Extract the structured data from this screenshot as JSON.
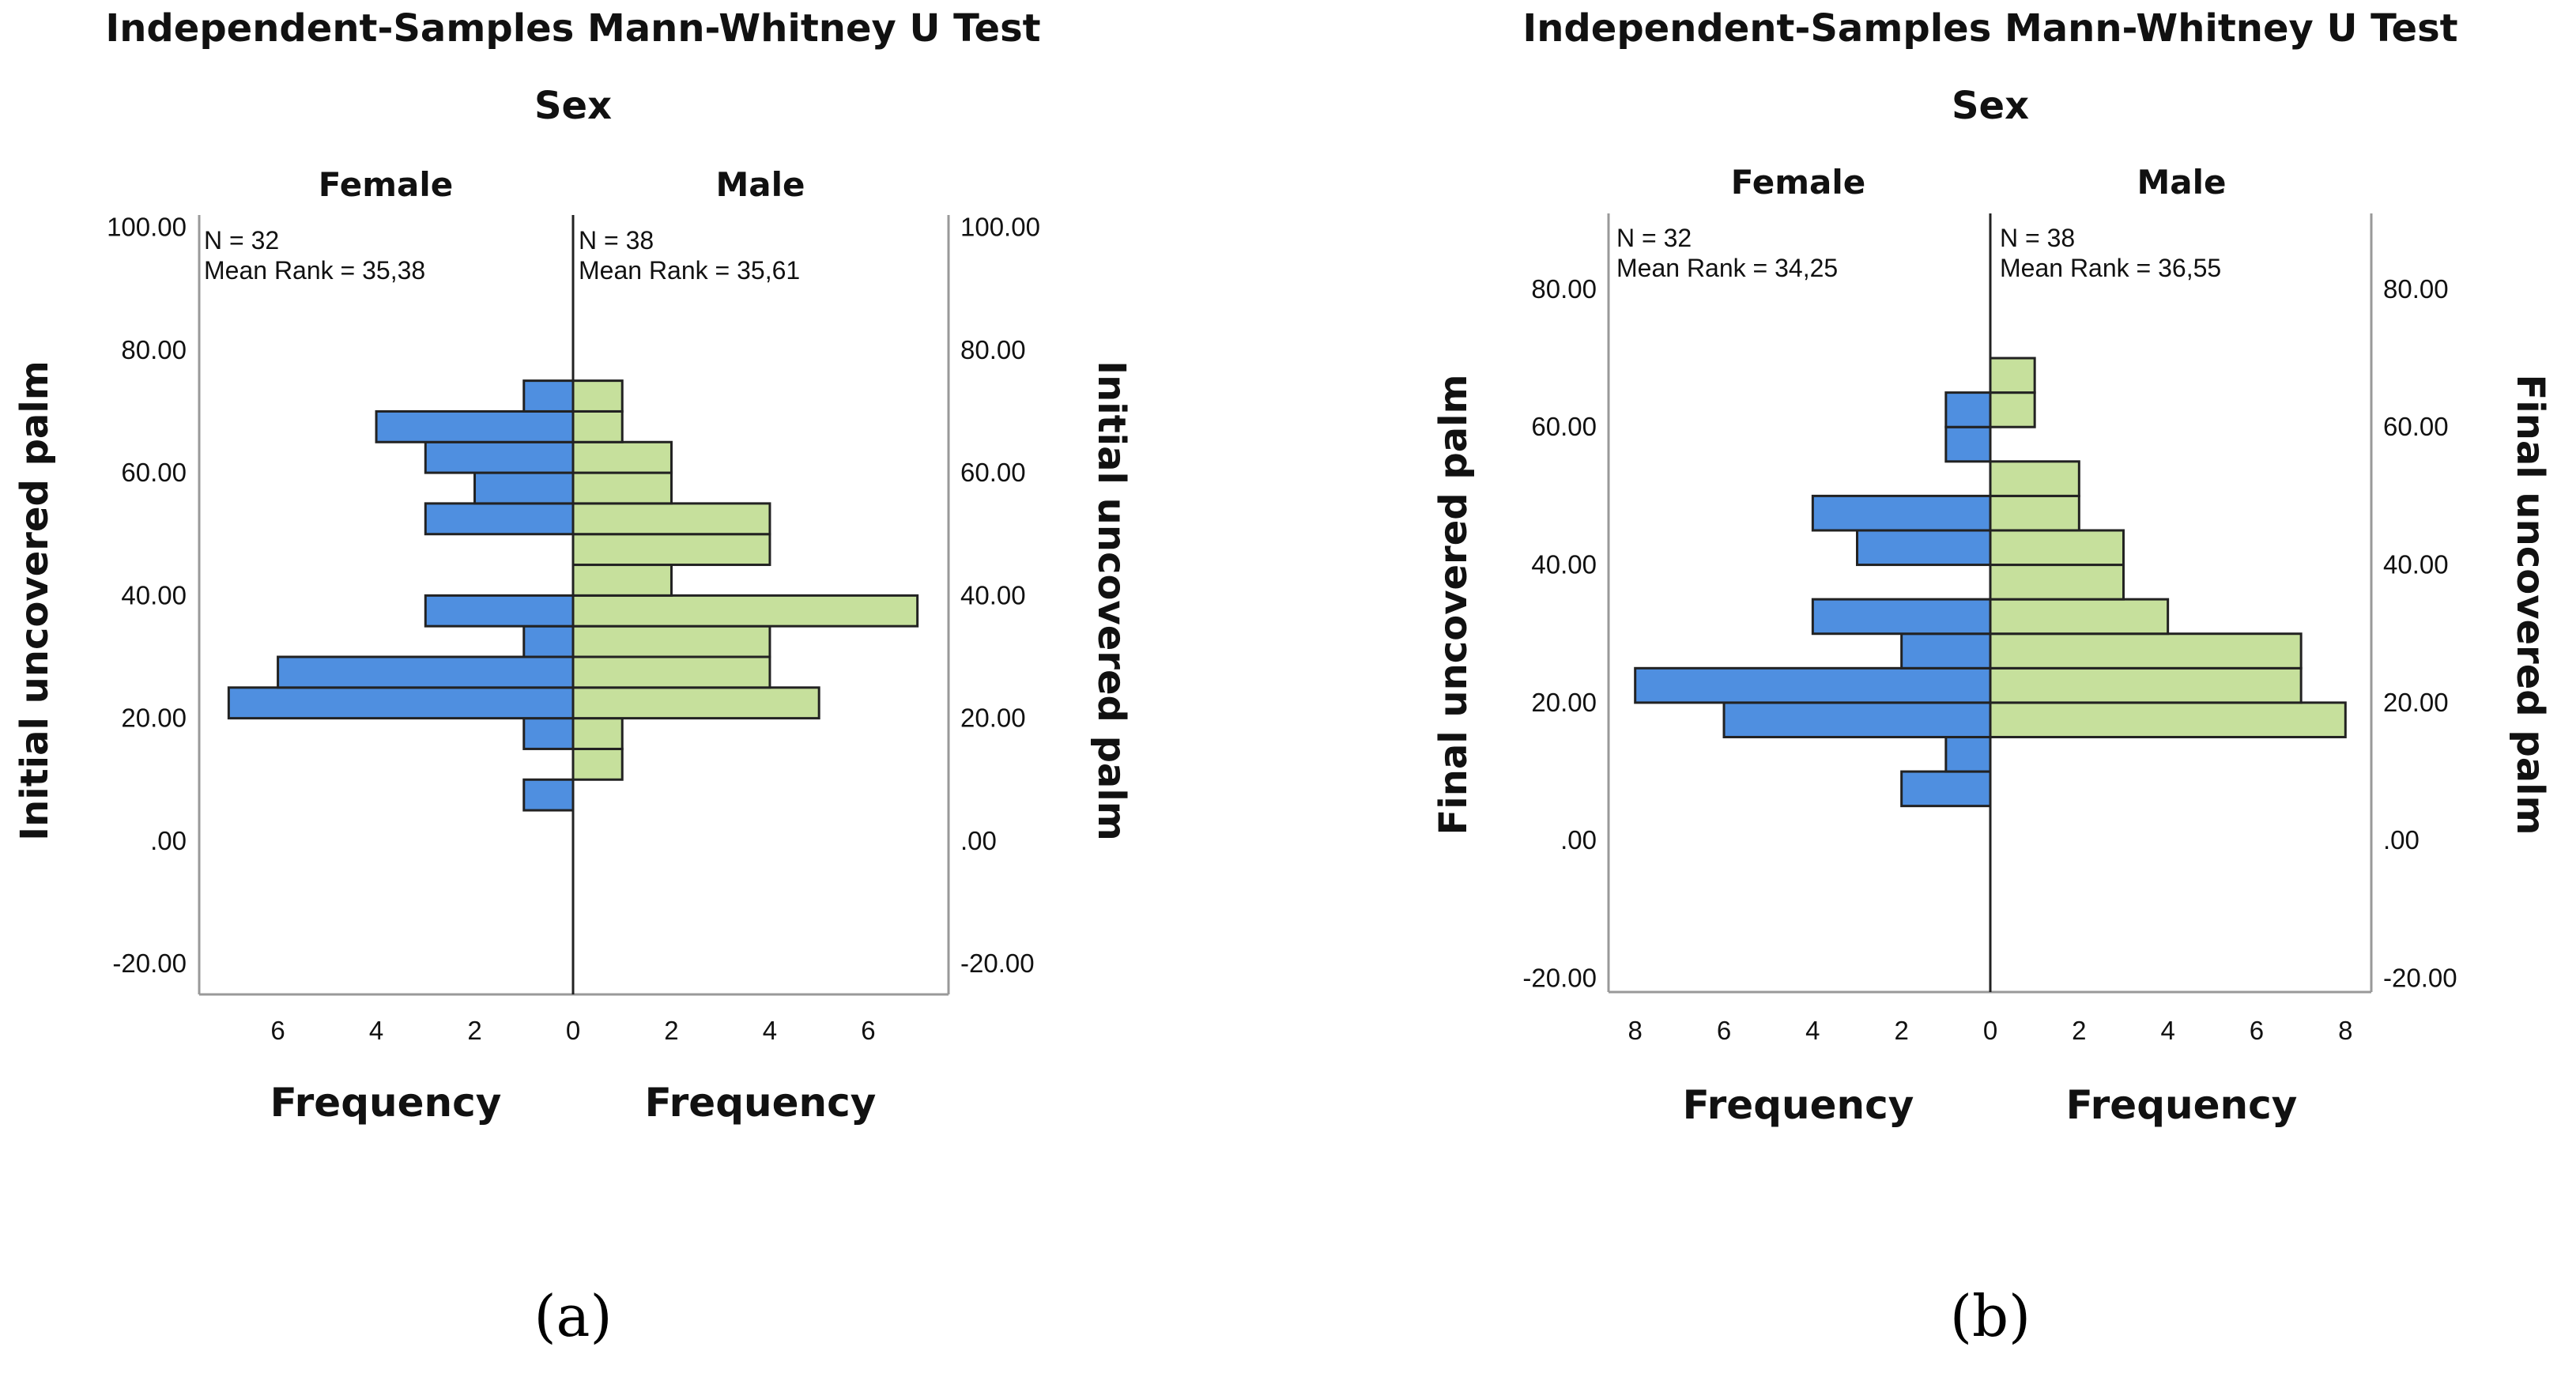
{
  "chart_data": [
    {
      "type": "bar",
      "subtype": "population-pyramid",
      "title": "Independent-Samples Mann-Whitney U Test",
      "subtitle": "Sex",
      "panel_label": "(a)",
      "ylabel": "Initial uncovered palm",
      "xlabel": "Frequency",
      "ylim": [
        -25,
        102
      ],
      "yticks": [
        "100.00",
        "80.00",
        "60.00",
        "40.00",
        "20.00",
        ".00",
        "-20.00"
      ],
      "ytick_values": [
        100,
        80,
        60,
        40,
        20,
        0,
        -20
      ],
      "xlim": 7.6,
      "xticks": [
        "6",
        "4",
        "2",
        "0",
        "2",
        "4",
        "6"
      ],
      "xtick_values": [
        -6,
        -4,
        -2,
        0,
        2,
        4,
        6
      ],
      "bin_width": 5,
      "colors": {
        "female": "#4f8fe0",
        "male": "#c6e09c",
        "edge": "#222222"
      },
      "series": [
        {
          "name": "Female",
          "stat_n": "N = 32",
          "stat_rank": "Mean Rank = 35,38",
          "bins": [
            {
              "lo": 5,
              "hi": 10,
              "count": 1
            },
            {
              "lo": 15,
              "hi": 20,
              "count": 1
            },
            {
              "lo": 20,
              "hi": 25,
              "count": 7
            },
            {
              "lo": 25,
              "hi": 30,
              "count": 6
            },
            {
              "lo": 30,
              "hi": 35,
              "count": 1
            },
            {
              "lo": 35,
              "hi": 40,
              "count": 3
            },
            {
              "lo": 50,
              "hi": 55,
              "count": 3
            },
            {
              "lo": 55,
              "hi": 60,
              "count": 2
            },
            {
              "lo": 60,
              "hi": 65,
              "count": 3
            },
            {
              "lo": 65,
              "hi": 70,
              "count": 4
            },
            {
              "lo": 70,
              "hi": 75,
              "count": 1
            }
          ]
        },
        {
          "name": "Male",
          "stat_n": "N = 38",
          "stat_rank": "Mean Rank = 35,61",
          "bins": [
            {
              "lo": 10,
              "hi": 15,
              "count": 1
            },
            {
              "lo": 15,
              "hi": 20,
              "count": 1
            },
            {
              "lo": 20,
              "hi": 25,
              "count": 5
            },
            {
              "lo": 25,
              "hi": 30,
              "count": 4
            },
            {
              "lo": 30,
              "hi": 35,
              "count": 4
            },
            {
              "lo": 35,
              "hi": 40,
              "count": 7
            },
            {
              "lo": 40,
              "hi": 45,
              "count": 2
            },
            {
              "lo": 45,
              "hi": 50,
              "count": 4
            },
            {
              "lo": 50,
              "hi": 55,
              "count": 4
            },
            {
              "lo": 55,
              "hi": 60,
              "count": 2
            },
            {
              "lo": 60,
              "hi": 65,
              "count": 2
            },
            {
              "lo": 65,
              "hi": 70,
              "count": 1
            },
            {
              "lo": 70,
              "hi": 75,
              "count": 1
            }
          ]
        }
      ]
    },
    {
      "type": "bar",
      "subtype": "population-pyramid",
      "title": "Independent-Samples Mann-Whitney U Test",
      "subtitle": "Sex",
      "panel_label": "(b)",
      "ylabel": "Final uncovered palm",
      "xlabel": "Frequency",
      "ylim": [
        -22,
        91
      ],
      "yticks": [
        "80.00",
        "60.00",
        "40.00",
        "20.00",
        ".00",
        "-20.00"
      ],
      "ytick_values": [
        80,
        60,
        40,
        20,
        0,
        -20
      ],
      "xlim": 8.6,
      "xticks": [
        "8",
        "6",
        "4",
        "2",
        "0",
        "2",
        "4",
        "6",
        "8"
      ],
      "xtick_values": [
        -8,
        -6,
        -4,
        -2,
        0,
        2,
        4,
        6,
        8
      ],
      "bin_width": 5,
      "colors": {
        "female": "#4f8fe0",
        "male": "#c6e09c",
        "edge": "#222222"
      },
      "series": [
        {
          "name": "Female",
          "stat_n": "N = 32",
          "stat_rank": "Mean Rank = 34,25",
          "bins": [
            {
              "lo": 5,
              "hi": 10,
              "count": 2
            },
            {
              "lo": 10,
              "hi": 15,
              "count": 1
            },
            {
              "lo": 15,
              "hi": 20,
              "count": 6
            },
            {
              "lo": 20,
              "hi": 25,
              "count": 8
            },
            {
              "lo": 25,
              "hi": 30,
              "count": 2
            },
            {
              "lo": 30,
              "hi": 35,
              "count": 4
            },
            {
              "lo": 40,
              "hi": 45,
              "count": 3
            },
            {
              "lo": 45,
              "hi": 50,
              "count": 4
            },
            {
              "lo": 55,
              "hi": 60,
              "count": 1
            },
            {
              "lo": 60,
              "hi": 65,
              "count": 1
            }
          ]
        },
        {
          "name": "Male",
          "stat_n": "N = 38",
          "stat_rank": "Mean Rank = 36,55",
          "bins": [
            {
              "lo": 15,
              "hi": 20,
              "count": 8
            },
            {
              "lo": 20,
              "hi": 25,
              "count": 7
            },
            {
              "lo": 25,
              "hi": 30,
              "count": 7
            },
            {
              "lo": 30,
              "hi": 35,
              "count": 4
            },
            {
              "lo": 35,
              "hi": 40,
              "count": 3
            },
            {
              "lo": 40,
              "hi": 45,
              "count": 3
            },
            {
              "lo": 45,
              "hi": 50,
              "count": 2
            },
            {
              "lo": 50,
              "hi": 55,
              "count": 2
            },
            {
              "lo": 60,
              "hi": 65,
              "count": 1
            },
            {
              "lo": 65,
              "hi": 70,
              "count": 1
            }
          ]
        }
      ]
    }
  ]
}
